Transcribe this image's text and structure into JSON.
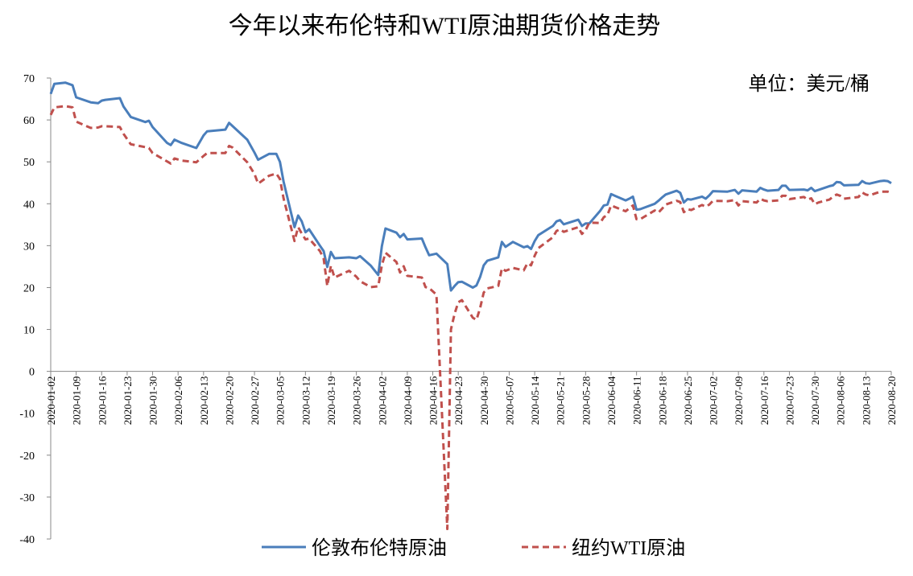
{
  "chart_data": {
    "type": "line",
    "title": "今年以来布伦特和WTI原油期货价格走势",
    "annotation": "单位：美元/桶",
    "x": [
      "2020-01-02",
      "2020-01-03",
      "2020-01-06",
      "2020-01-08",
      "2020-01-09",
      "2020-01-13",
      "2020-01-15",
      "2020-01-16",
      "2020-01-17",
      "2020-01-21",
      "2020-01-22",
      "2020-01-24",
      "2020-01-28",
      "2020-01-29",
      "2020-01-30",
      "2020-02-03",
      "2020-02-04",
      "2020-02-05",
      "2020-02-07",
      "2020-02-11",
      "2020-02-13",
      "2020-02-14",
      "2020-02-19",
      "2020-02-20",
      "2020-02-21",
      "2020-02-25",
      "2020-02-27",
      "2020-02-28",
      "2020-03-02",
      "2020-03-04",
      "2020-03-05",
      "2020-03-06",
      "2020-03-09",
      "2020-03-10",
      "2020-03-11",
      "2020-03-12",
      "2020-03-13",
      "2020-03-16",
      "2020-03-17",
      "2020-03-18",
      "2020-03-19",
      "2020-03-20",
      "2020-03-24",
      "2020-03-26",
      "2020-03-27",
      "2020-03-30",
      "2020-04-01",
      "2020-04-02",
      "2020-04-03",
      "2020-04-06",
      "2020-04-07",
      "2020-04-08",
      "2020-04-09",
      "2020-04-13",
      "2020-04-14",
      "2020-04-15",
      "2020-04-17",
      "2020-04-20",
      "2020-04-21",
      "2020-04-22",
      "2020-04-23",
      "2020-04-24",
      "2020-04-27",
      "2020-04-28",
      "2020-04-29",
      "2020-04-30",
      "2020-05-01",
      "2020-05-04",
      "2020-05-05",
      "2020-05-06",
      "2020-05-08",
      "2020-05-11",
      "2020-05-12",
      "2020-05-13",
      "2020-05-14",
      "2020-05-15",
      "2020-05-19",
      "2020-05-20",
      "2020-05-21",
      "2020-05-22",
      "2020-05-26",
      "2020-05-27",
      "2020-05-28",
      "2020-05-29",
      "2020-06-01",
      "2020-06-02",
      "2020-06-03",
      "2020-06-04",
      "2020-06-08",
      "2020-06-09",
      "2020-06-10",
      "2020-06-11",
      "2020-06-12",
      "2020-06-16",
      "2020-06-17",
      "2020-06-18",
      "2020-06-19",
      "2020-06-22",
      "2020-06-23",
      "2020-06-24",
      "2020-06-25",
      "2020-06-26",
      "2020-06-29",
      "2020-06-30",
      "2020-07-01",
      "2020-07-02",
      "2020-07-06",
      "2020-07-08",
      "2020-07-09",
      "2020-07-10",
      "2020-07-14",
      "2020-07-15",
      "2020-07-16",
      "2020-07-17",
      "2020-07-20",
      "2020-07-21",
      "2020-07-22",
      "2020-07-23",
      "2020-07-27",
      "2020-07-28",
      "2020-07-29",
      "2020-07-30",
      "2020-07-31",
      "2020-08-03",
      "2020-08-04",
      "2020-08-05",
      "2020-08-06",
      "2020-08-07",
      "2020-08-11",
      "2020-08-12",
      "2020-08-13",
      "2020-08-14",
      "2020-08-17",
      "2020-08-18",
      "2020-08-19",
      "2020-08-20"
    ],
    "series": [
      {
        "name": "伦敦布伦特原油",
        "color": "#4a7ebb",
        "dash": "solid",
        "values": [
          66.2,
          68.6,
          68.9,
          68.3,
          65.4,
          64.2,
          64.0,
          64.6,
          64.8,
          65.2,
          63.2,
          60.7,
          59.5,
          59.8,
          58.3,
          54.5,
          54.0,
          55.3,
          54.5,
          53.3,
          56.3,
          57.3,
          57.7,
          59.3,
          58.5,
          55.3,
          52.2,
          50.5,
          51.9,
          51.9,
          50.0,
          45.3,
          34.4,
          37.2,
          35.8,
          33.2,
          33.9,
          30.0,
          28.7,
          24.9,
          28.5,
          27.0,
          27.2,
          27.0,
          27.5,
          25.2,
          23.0,
          29.9,
          34.1,
          33.1,
          32.0,
          32.8,
          31.5,
          31.7,
          29.6,
          27.7,
          28.1,
          25.6,
          19.3,
          20.4,
          21.3,
          21.4,
          20.0,
          20.5,
          22.5,
          25.3,
          26.4,
          27.2,
          30.9,
          29.7,
          30.9,
          29.6,
          29.9,
          29.2,
          31.1,
          32.5,
          34.7,
          35.8,
          36.1,
          35.1,
          36.2,
          34.7,
          35.3,
          35.3,
          38.3,
          39.6,
          39.8,
          42.3,
          40.8,
          41.2,
          41.7,
          38.6,
          38.7,
          40.0,
          40.7,
          41.5,
          42.2,
          43.1,
          42.6,
          40.3,
          41.1,
          41.0,
          41.7,
          41.2,
          42.0,
          43.0,
          42.9,
          43.3,
          42.4,
          43.2,
          42.9,
          43.8,
          43.4,
          43.1,
          43.3,
          44.3,
          44.3,
          43.3,
          43.4,
          43.2,
          43.8,
          43.0,
          43.3,
          44.2,
          44.4,
          45.2,
          45.1,
          44.4,
          44.5,
          45.4,
          44.9,
          44.8,
          45.4,
          45.5,
          45.4,
          44.9
        ]
      },
      {
        "name": "纽约WTI原油",
        "color": "#c0504d",
        "dash": "dashed",
        "values": [
          61.2,
          63.0,
          63.3,
          63.0,
          59.6,
          58.1,
          58.2,
          58.5,
          58.5,
          58.3,
          56.7,
          54.2,
          53.5,
          53.3,
          52.1,
          50.1,
          49.6,
          50.8,
          50.3,
          49.9,
          51.4,
          52.1,
          52.1,
          53.8,
          53.4,
          49.9,
          47.1,
          44.8,
          46.7,
          47.2,
          45.9,
          41.3,
          31.1,
          34.4,
          32.9,
          31.5,
          31.7,
          28.7,
          26.9,
          20.4,
          25.2,
          22.4,
          24.0,
          22.6,
          21.5,
          20.1,
          20.3,
          25.3,
          28.3,
          26.1,
          23.6,
          25.1,
          22.8,
          22.4,
          20.1,
          19.9,
          18.3,
          -37.6,
          10.0,
          13.8,
          16.5,
          17.0,
          12.8,
          12.3,
          15.1,
          18.8,
          19.8,
          20.4,
          24.6,
          24.0,
          24.7,
          24.1,
          25.8,
          25.3,
          27.6,
          29.4,
          32.0,
          33.5,
          33.9,
          33.3,
          34.4,
          32.8,
          33.7,
          35.5,
          35.4,
          36.8,
          37.3,
          39.6,
          38.2,
          38.9,
          39.6,
          36.3,
          36.3,
          38.4,
          37.9,
          38.8,
          39.8,
          40.7,
          40.4,
          38.0,
          38.7,
          38.5,
          39.7,
          39.3,
          39.8,
          40.7,
          40.6,
          40.9,
          39.6,
          40.6,
          40.3,
          41.2,
          40.8,
          40.6,
          40.8,
          41.9,
          41.9,
          41.1,
          41.6,
          41.0,
          41.3,
          39.9,
          40.3,
          41.0,
          41.7,
          42.2,
          41.9,
          41.2,
          41.6,
          42.7,
          42.2,
          42.0,
          42.9,
          42.9,
          42.9,
          42.6
        ]
      }
    ],
    "xlim": [
      "2020-01-02",
      "2020-08-20"
    ],
    "xticks": [
      "2020-01-02",
      "2020-01-09",
      "2020-01-16",
      "2020-01-23",
      "2020-01-30",
      "2020-02-06",
      "2020-02-13",
      "2020-02-20",
      "2020-02-27",
      "2020-03-05",
      "2020-03-12",
      "2020-03-19",
      "2020-03-26",
      "2020-04-02",
      "2020-04-09",
      "2020-04-16",
      "2020-04-23",
      "2020-04-30",
      "2020-05-07",
      "2020-05-14",
      "2020-05-21",
      "2020-05-28",
      "2020-06-04",
      "2020-06-11",
      "2020-06-18",
      "2020-06-25",
      "2020-07-02",
      "2020-07-09",
      "2020-07-16",
      "2020-07-23",
      "2020-07-30",
      "2020-08-06",
      "2020-08-13",
      "2020-08-20"
    ],
    "ylim": [
      -40,
      70
    ],
    "yticks": [
      -40,
      -30,
      -20,
      -10,
      0,
      10,
      20,
      30,
      40,
      50,
      60,
      70
    ],
    "grid": false,
    "legend": "bottom"
  }
}
